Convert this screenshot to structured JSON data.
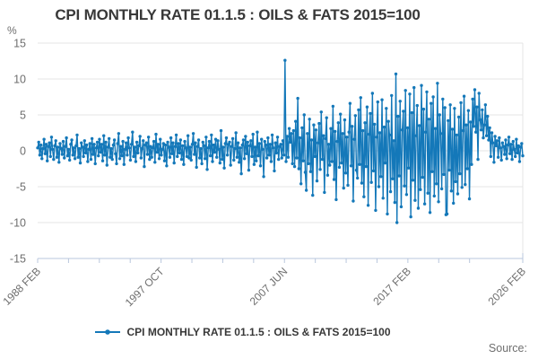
{
  "title": "CPI MONTHLY RATE 01.1.5 : OILS & FATS 2015=100",
  "y_axis": {
    "unit_label": "%",
    "ticks": [
      15,
      10,
      5,
      0,
      -5,
      -10,
      -15
    ],
    "min": -15,
    "max": 15
  },
  "x_axis": {
    "total_months": 456,
    "tick_interval_months": 29,
    "labels": [
      {
        "text": "1988 FEB",
        "month": 0
      },
      {
        "text": "1997 OCT",
        "month": 116
      },
      {
        "text": "2007 JUN",
        "month": 232
      },
      {
        "text": "2017 FEB",
        "month": 348
      },
      {
        "text": "2026 FEB",
        "month": 456
      }
    ]
  },
  "legend": {
    "label": "CPI MONTHLY RATE 01.1.5 : OILS & FATS 2015=100"
  },
  "source": {
    "label": "Source:"
  },
  "colors": {
    "line": "#1478b9",
    "grid": "#e4e4e4",
    "axis": "#b9c7dd",
    "text_dark": "#383838",
    "text_gray": "#6e6e6e"
  },
  "chart_data": {
    "type": "line",
    "title": "CPI MONTHLY RATE 01.1.5 : OILS & FATS 2015=100",
    "xlabel": "",
    "ylabel": "%",
    "ylim": [
      -15,
      15
    ],
    "x_start": "1988 FEB",
    "x_end": "2026 JAN",
    "frequency": "monthly",
    "x_tick_labels": [
      "1988 FEB",
      "1997 OCT",
      "2007 JUN",
      "2017 FEB",
      "2026 FEB"
    ],
    "grid": "horizontal",
    "legend_position": "bottom",
    "markers": true,
    "series": [
      {
        "name": "CPI MONTHLY RATE 01.1.5 : OILS & FATS 2015=100",
        "values": [
          0.4,
          1.2,
          -0.6,
          0.8,
          -1.1,
          0.3,
          1.6,
          -0.4,
          0.9,
          -1.4,
          0.6,
          1.1,
          -0.8,
          1.9,
          0.2,
          -1.2,
          0.7,
          1.4,
          -0.9,
          0.5,
          -1.6,
          1.0,
          0.3,
          -0.5,
          1.3,
          -1.0,
          0.6,
          1.8,
          -0.7,
          0.2,
          -1.3,
          0.9,
          1.5,
          -0.6,
          0.4,
          -1.1,
          0.7,
          2.2,
          -0.9,
          0.3,
          -1.7,
          1.1,
          0.5,
          -0.8,
          1.4,
          -0.3,
          0.8,
          -1.5,
          0.2,
          1.0,
          -1.2,
          1.7,
          -0.5,
          0.9,
          -1.8,
          0.4,
          1.2,
          -0.7,
          1.6,
          -0.2,
          0.9,
          -1.4,
          2.1,
          -0.6,
          1.2,
          -2.0,
          0.5,
          1.7,
          -0.9,
          0.3,
          -1.2,
          0.8,
          1.5,
          -0.4,
          -1.8,
          1.0,
          2.4,
          -1.1,
          0.6,
          -0.7,
          1.3,
          -1.9,
          0.2,
          1.1,
          -0.6,
          1.8,
          0.4,
          -1.3,
          0.9,
          2.6,
          -0.8,
          0.5,
          -1.5,
          1.2,
          -0.3,
          0.7,
          2.0,
          -1.0,
          0.3,
          1.4,
          -2.2,
          0.8,
          1.1,
          -0.5,
          1.9,
          -1.2,
          0.6,
          -0.9,
          0.4,
          1.3,
          -1.6,
          2.3,
          -0.2,
          0.9,
          -1.1,
          1.6,
          -0.6,
          0.2,
          1.0,
          -1.4,
          0.8,
          -2.1,
          1.2,
          0.5,
          -0.9,
          1.8,
          -0.4,
          1.1,
          -1.7,
          0.6,
          2.2,
          -0.8,
          1.0,
          -0.3,
          1.5,
          -1.2,
          0.7,
          -1.9,
          1.3,
          0.4,
          -0.8,
          2.1,
          -1.0,
          0.5,
          -1.3,
          0.9,
          2.4,
          -0.5,
          1.1,
          -2.3,
          0.6,
          1.5,
          -1.0,
          0.3,
          -1.8,
          1.2,
          0.7,
          -1.1,
          1.9,
          -2.6,
          0.4,
          1.3,
          -0.7,
          2.2,
          -1.5,
          0.8,
          -0.2,
          1.6,
          -0.9,
          1.4,
          0.2,
          -1.7,
          2.8,
          -1.2,
          0.5,
          -2.4,
          1.0,
          1.8,
          -0.6,
          0.9,
          1.2,
          -2.0,
          0.6,
          1.7,
          -1.3,
          0.3,
          2.5,
          -0.9,
          1.1,
          -1.6,
          0.4,
          -3.2,
          0.8,
          1.5,
          -1.1,
          2.0,
          -0.4,
          1.2,
          -2.7,
          0.7,
          1.4,
          -0.8,
          2.3,
          -1.9,
          0.5,
          -1.4,
          2.6,
          -0.7,
          1.0,
          -2.1,
          1.6,
          0.2,
          -3.6,
          1.3,
          0.8,
          -1.0,
          1.8,
          -0.6,
          0.9,
          -1.5,
          2.2,
          0.4,
          -2.8,
          1.1,
          -0.3,
          1.9,
          -1.2,
          0.6,
          0.9,
          -1.0,
          1.4,
          -0.6,
          12.6,
          -1.5,
          2.0,
          -0.9,
          3.1,
          1.2,
          2.4,
          -1.8,
          2.8,
          -2.2,
          4.1,
          -1.0,
          7.3,
          -2.5,
          1.8,
          -4.6,
          3.2,
          -1.4,
          5.0,
          -3.0,
          -5.5,
          2.4,
          -1.8,
          4.4,
          -2.9,
          1.5,
          -6.2,
          3.6,
          -0.8,
          2.9,
          -4.2,
          1.1,
          3.8,
          -2.6,
          5.4,
          -1.2,
          2.1,
          -5.8,
          1.7,
          4.6,
          -3.4,
          0.9,
          -2.0,
          3.1,
          -1.5,
          6.2,
          -4.0,
          2.7,
          -6.8,
          1.3,
          3.9,
          -2.3,
          5.1,
          -1.7,
          2.4,
          -5.2,
          4.3,
          -3.1,
          1.9,
          -4.8,
          2.6,
          6.6,
          -2.1,
          3.4,
          -7.0,
          1.6,
          4.9,
          -2.7,
          -3.8,
          5.7,
          -1.9,
          7.4,
          -4.5,
          2.8,
          -6.4,
          3.9,
          -2.2,
          6.1,
          -7.6,
          2.3,
          5.2,
          -4.4,
          8.0,
          -2.8,
          3.7,
          -8.3,
          1.9,
          6.8,
          -5.0,
          2.5,
          -3.6,
          7.1,
          -6.6,
          3.3,
          -1.7,
          5.9,
          -8.8,
          4.1,
          2.2,
          -5.7,
          7.7,
          -3.9,
          1.4,
          -7.2,
          10.7,
          -10.0,
          4.8,
          -3.5,
          6.9,
          -7.8,
          2.9,
          5.5,
          -4.9,
          8.4,
          -6.1,
          3.2,
          -2.4,
          7.9,
          -9.2,
          5.3,
          -4.1,
          8.8,
          -6.9,
          2.1,
          6.3,
          -8.0,
          3.5,
          -5.4,
          9.1,
          -3.7,
          5.8,
          -7.4,
          2.6,
          8.2,
          -5.9,
          4.4,
          -8.6,
          6.6,
          -2.9,
          7.5,
          -6.3,
          3.1,
          -4.6,
          9.4,
          -7.1,
          5.0,
          2.4,
          -5.3,
          7.2,
          -3.3,
          6.0,
          -8.9,
          -8.8,
          4.2,
          -2.7,
          6.4,
          -5.6,
          3.0,
          -7.3,
          5.9,
          -4.3,
          2.2,
          -6.0,
          4.7,
          -3.2,
          6.7,
          -5.1,
          2.8,
          7.6,
          -4.7,
          3.6,
          -2.5,
          5.6,
          -6.7,
          4.0,
          -1.9,
          7.2,
          3.4,
          8.5,
          2.6,
          6.1,
          -1.2,
          8.0,
          4.3,
          2.9,
          5.7,
          1.8,
          3.6,
          6.4,
          2.1,
          4.8,
          1.5,
          3.2,
          -0.8,
          2.5,
          1.1,
          -1.6,
          2.0,
          0.7,
          1.4,
          -0.9,
          1.8,
          0.4,
          -1.3,
          1.1,
          0.6,
          -0.5,
          1.5,
          -1.1,
          0.8,
          1.9,
          -0.4,
          0.9,
          -1.2,
          1.3,
          0.2,
          -0.8,
          1.6,
          -0.3,
          0.7,
          -1.5,
          0.5,
          1.0,
          -0.7
        ]
      }
    ]
  }
}
